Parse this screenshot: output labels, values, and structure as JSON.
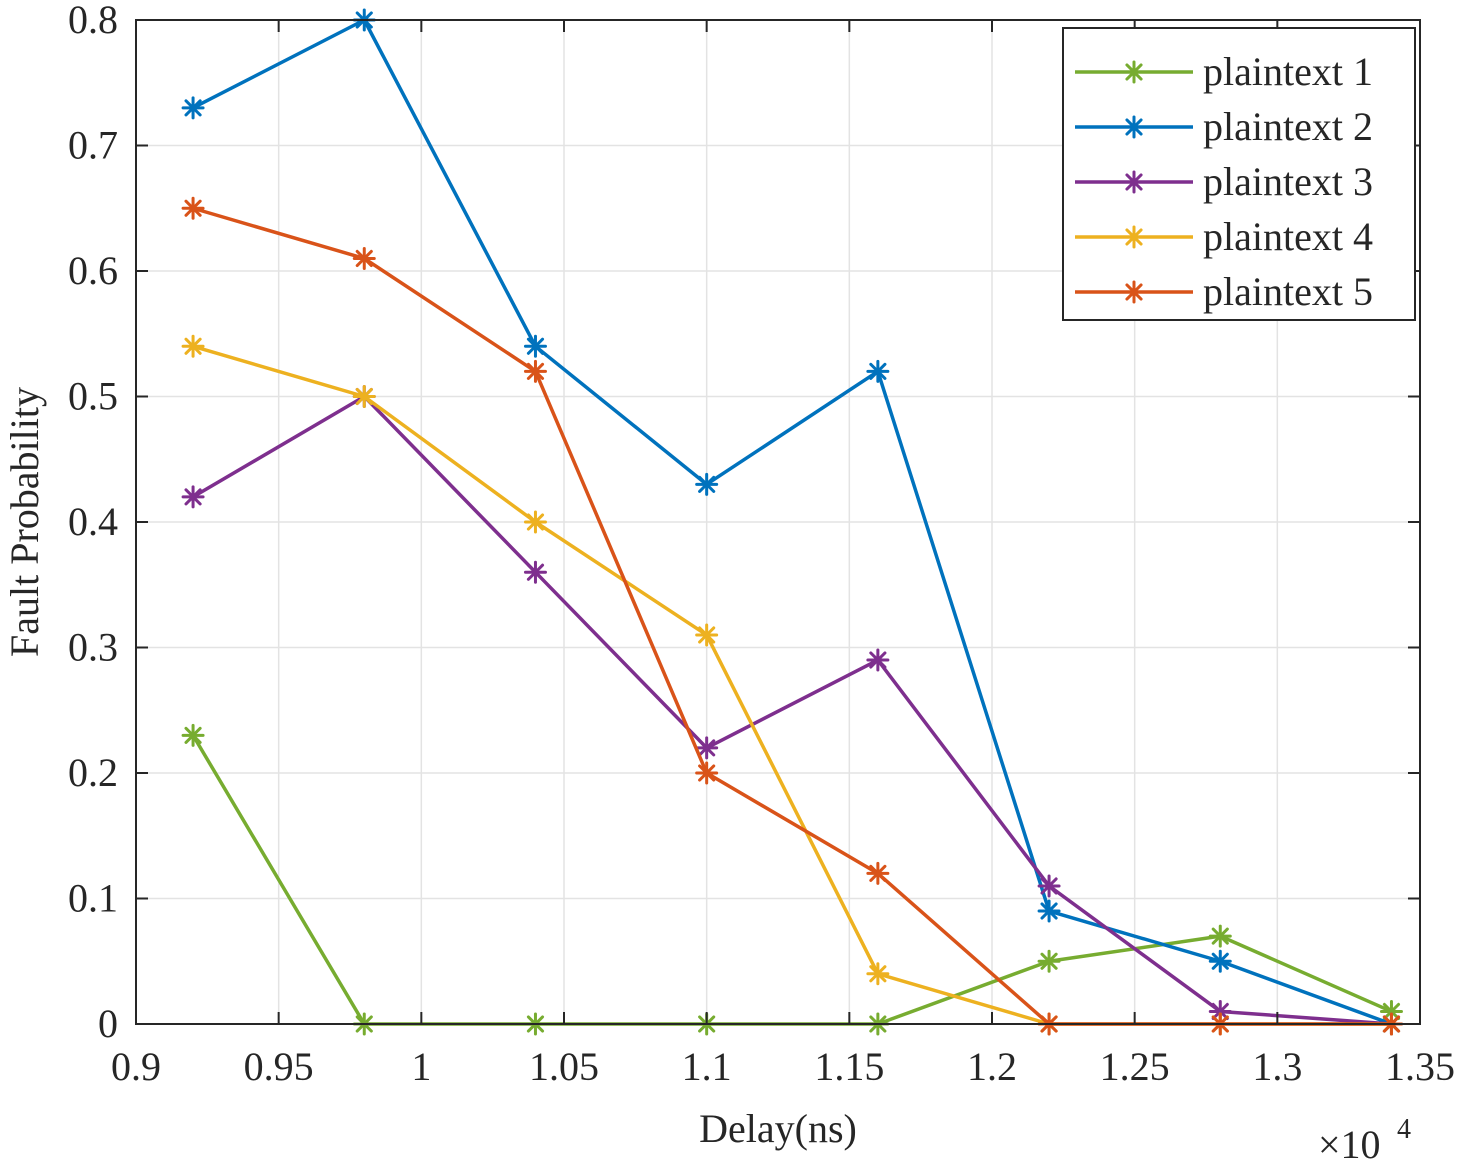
{
  "chart_data": {
    "type": "line",
    "title": "",
    "xlabel": "Delay(ns)",
    "ylabel": "Fault Probability",
    "x_multiplier_label": "×10",
    "x_multiplier_exponent": "4",
    "xlim": [
      0.9,
      1.35
    ],
    "ylim": [
      0,
      0.8
    ],
    "xticks": [
      0.9,
      0.95,
      1,
      1.05,
      1.1,
      1.15,
      1.2,
      1.25,
      1.3,
      1.35
    ],
    "xtick_labels": [
      "0.9",
      "0.95",
      "1",
      "1.05",
      "1.1",
      "1.15",
      "1.2",
      "1.25",
      "1.3",
      "1.35"
    ],
    "yticks": [
      0,
      0.1,
      0.2,
      0.3,
      0.4,
      0.5,
      0.6,
      0.7,
      0.8
    ],
    "ytick_labels": [
      "0",
      "0.1",
      "0.2",
      "0.3",
      "0.4",
      "0.5",
      "0.6",
      "0.7",
      "0.8"
    ],
    "grid": true,
    "legend_position": "top-right",
    "x": [
      0.92,
      0.98,
      1.04,
      1.1,
      1.16,
      1.22,
      1.28,
      1.34
    ],
    "series": [
      {
        "name": "plaintext 1",
        "color": "#77ac30",
        "values": [
          0.23,
          0,
          0,
          0,
          0,
          0.05,
          0.07,
          0.01
        ]
      },
      {
        "name": "plaintext 2",
        "color": "#0072bd",
        "values": [
          0.73,
          0.8,
          0.54,
          0.43,
          0.52,
          0.09,
          0.05,
          0
        ]
      },
      {
        "name": "plaintext 3",
        "color": "#7e2f8e",
        "values": [
          0.42,
          0.5,
          0.36,
          0.22,
          0.29,
          0.11,
          0.01,
          0
        ]
      },
      {
        "name": "plaintext 4",
        "color": "#edb120",
        "values": [
          0.54,
          0.5,
          0.4,
          0.31,
          0.04,
          0,
          0,
          0
        ]
      },
      {
        "name": "plaintext 5",
        "color": "#d95319",
        "values": [
          0.65,
          0.61,
          0.52,
          0.2,
          0.12,
          0,
          0,
          0
        ]
      }
    ]
  }
}
